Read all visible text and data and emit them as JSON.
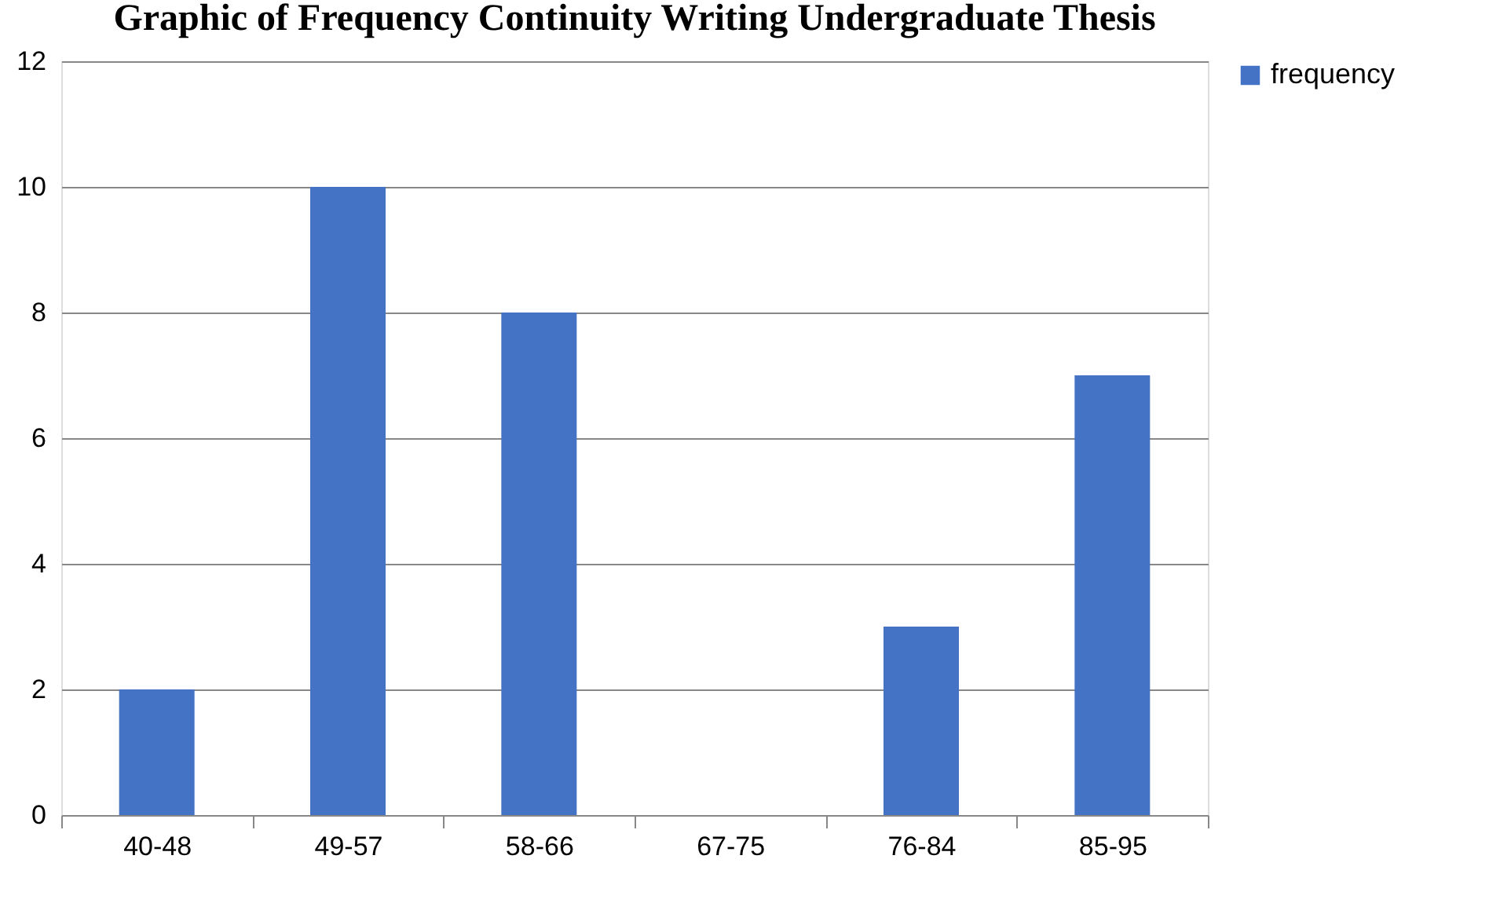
{
  "chart_data": {
    "type": "bar",
    "title": "Graphic of Frequency Continuity Writing Undergraduate Thesis",
    "categories": [
      "40-48",
      "49-57",
      "58-66",
      "67-75",
      "76-84",
      "85-95"
    ],
    "series": [
      {
        "name": "frequency",
        "color": "#4472c4",
        "values": [
          2,
          10,
          8,
          0,
          3,
          7
        ]
      }
    ],
    "ylim": [
      0,
      12
    ],
    "yticks": [
      0,
      2,
      4,
      6,
      8,
      10,
      12
    ],
    "grid": "y",
    "legend": "right"
  }
}
